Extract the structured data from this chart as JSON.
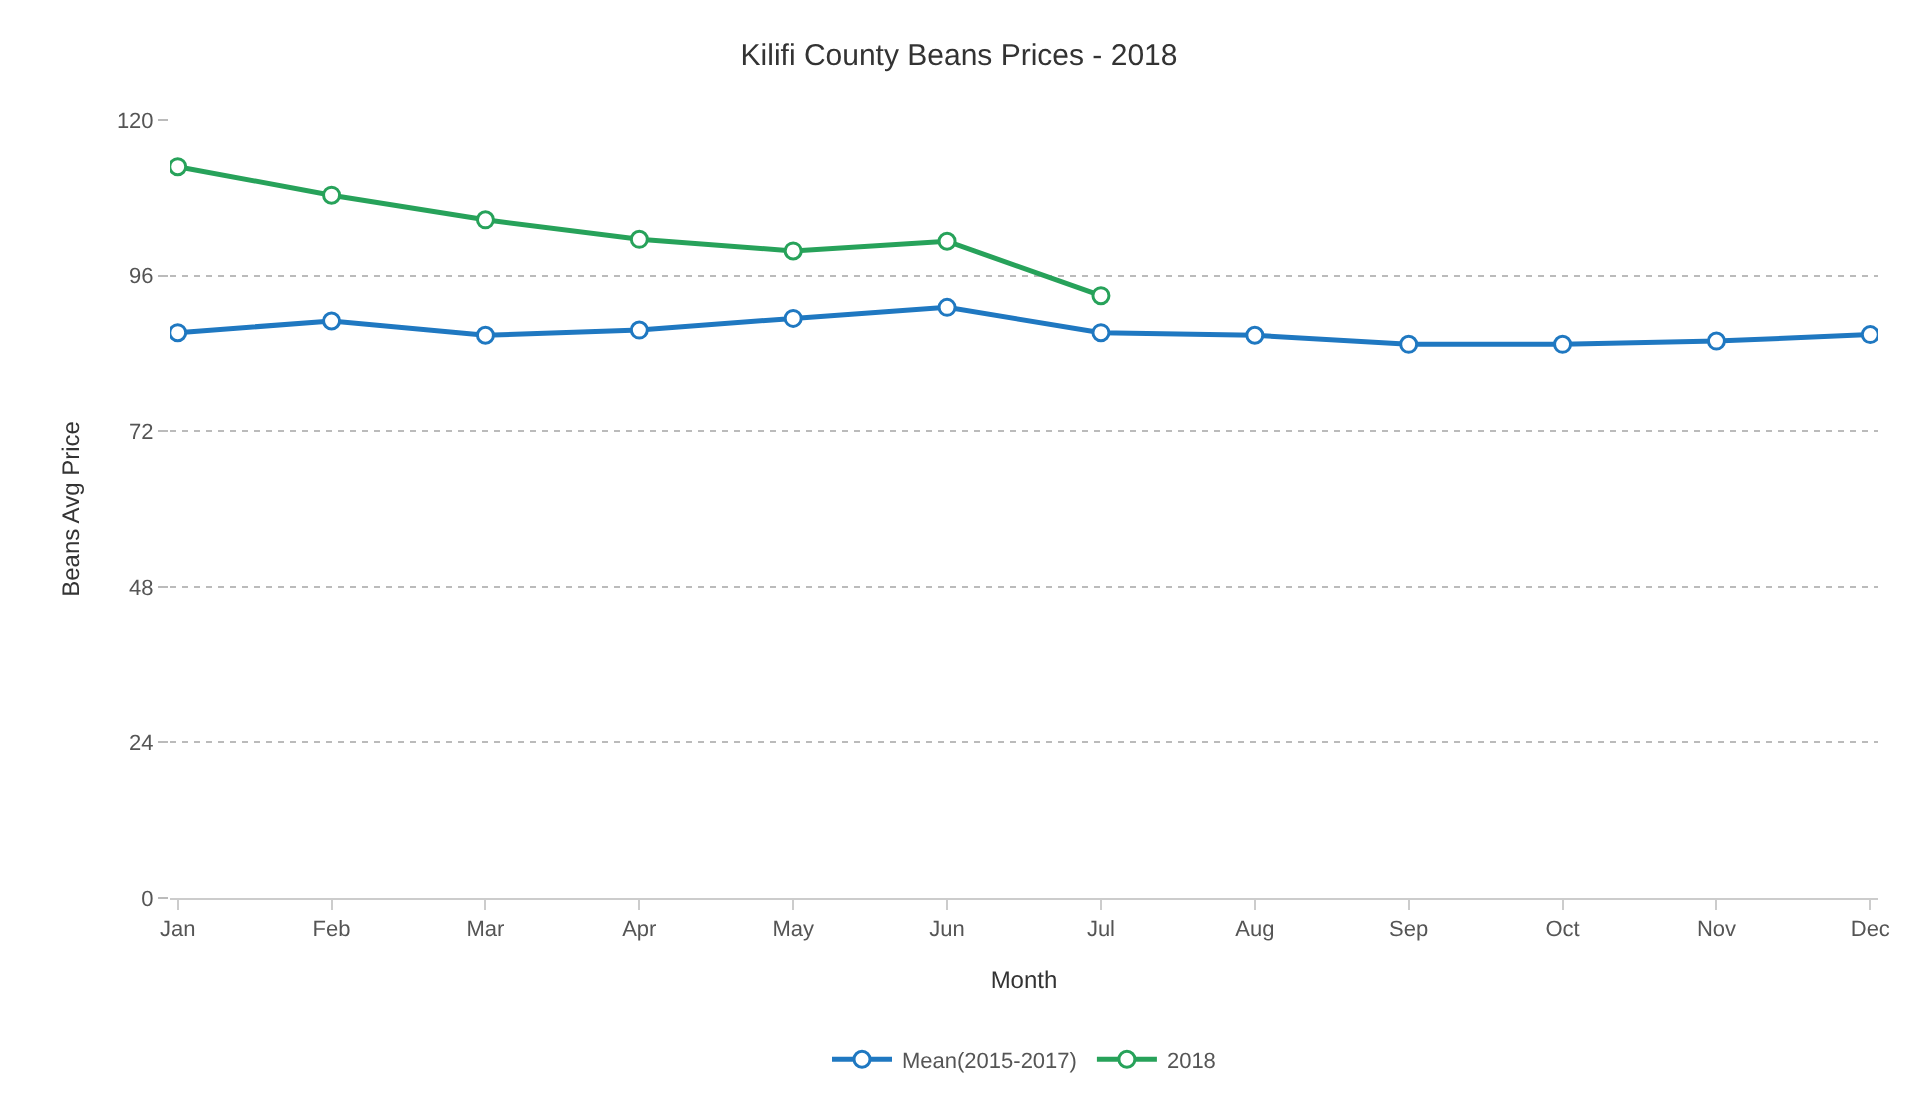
{
  "chart_data": {
    "type": "line",
    "title": "Kilifi County Beans Prices - 2018",
    "xlabel": "Month",
    "ylabel": "Beans Avg Price",
    "categories": [
      "Jan",
      "Feb",
      "Mar",
      "Apr",
      "May",
      "Jun",
      "Jul",
      "Aug",
      "Sep",
      "Oct",
      "Nov",
      "Dec"
    ],
    "series": [
      {
        "name": "Mean(2015-2017)",
        "color": "#1f78c1",
        "values": [
          87.2,
          89.0,
          86.8,
          87.6,
          89.4,
          91.1,
          87.2,
          86.8,
          85.4,
          85.4,
          85.9,
          86.9
        ]
      },
      {
        "name": "2018",
        "color": "#27a25a",
        "values": [
          112.8,
          108.4,
          104.6,
          101.6,
          99.8,
          101.3,
          92.9,
          null,
          null,
          null,
          null,
          null
        ]
      }
    ],
    "ylim": [
      0,
      120
    ],
    "yticks": [
      0,
      24,
      48,
      72,
      96,
      120
    ],
    "grid": "y",
    "legend": "bottom",
    "marker": "circle",
    "line_style": "solid"
  }
}
